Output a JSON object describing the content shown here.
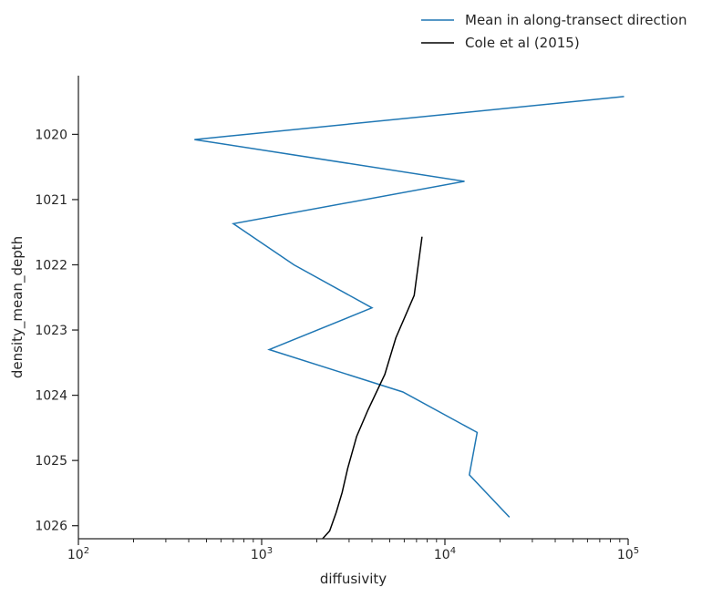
{
  "chart_data": {
    "type": "line",
    "xlabel": "diffusivity",
    "ylabel": "density_mean_depth",
    "x_scale": "log",
    "xlim": [
      100,
      100000
    ],
    "x_ticks": [
      {
        "value": 100,
        "base": "10",
        "exp": "2"
      },
      {
        "value": 1000,
        "base": "10",
        "exp": "3"
      },
      {
        "value": 10000,
        "base": "10",
        "exp": "4"
      },
      {
        "value": 100000,
        "base": "10",
        "exp": "5"
      }
    ],
    "ylim": [
      1026.2,
      1019.1
    ],
    "y_inverted": true,
    "y_ticks": [
      "1020",
      "1021",
      "1022",
      "1023",
      "1024",
      "1025",
      "1026"
    ],
    "grid": false,
    "legend_position": "top-right, above plot",
    "series": [
      {
        "name": "Mean in along-transect direction",
        "color": "#1f77b4",
        "points": [
          [
            95000,
            1019.42
          ],
          [
            430,
            1020.08
          ],
          [
            12800,
            1020.72
          ],
          [
            700,
            1021.37
          ],
          [
            1500,
            1022.0
          ],
          [
            4000,
            1022.66
          ],
          [
            1100,
            1023.3
          ],
          [
            5900,
            1023.95
          ],
          [
            15000,
            1024.57
          ],
          [
            13600,
            1025.22
          ],
          [
            22500,
            1025.87
          ]
        ]
      },
      {
        "name": "Cole et al (2015)",
        "color": "#000000",
        "points": [
          [
            7500,
            1021.57
          ],
          [
            6800,
            1022.47
          ],
          [
            5400,
            1023.12
          ],
          [
            4700,
            1023.68
          ],
          [
            3800,
            1024.23
          ],
          [
            3300,
            1024.63
          ],
          [
            2950,
            1025.12
          ],
          [
            2750,
            1025.49
          ],
          [
            2550,
            1025.8
          ],
          [
            2350,
            1026.08
          ],
          [
            2150,
            1026.2
          ]
        ]
      }
    ]
  }
}
